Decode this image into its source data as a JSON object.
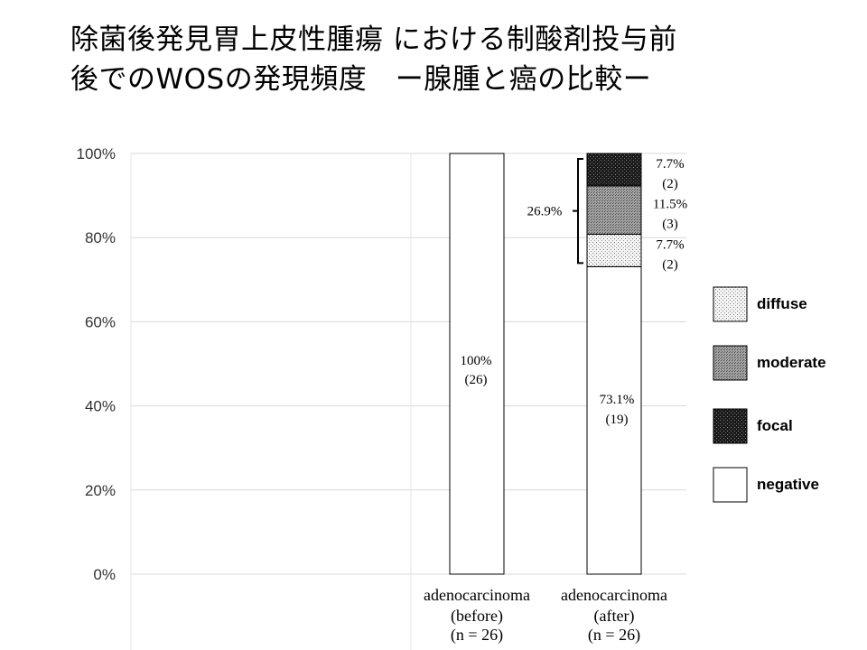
{
  "title": {
    "line1": "除菌後発見胃上皮性腫瘍 における制酸剤投与前",
    "line2": "後でのWOSの発現頻度　ー腺腫と癌の比較ー"
  },
  "chart_data": {
    "type": "bar",
    "stacked": true,
    "ylim": [
      0,
      100
    ],
    "y_ticks": [
      "0%",
      "20%",
      "40%",
      "60%",
      "80%",
      "100%"
    ],
    "grid": true,
    "categories": [
      {
        "name": "adenocarcinoma",
        "sub": "(before)",
        "n": "(n = 26)"
      },
      {
        "name": "adenocarcinoma",
        "sub": "(after)",
        "n": "(n = 26)"
      }
    ],
    "series": [
      {
        "name": "negative",
        "values": [
          100,
          73.1
        ],
        "labels": [
          [
            "100%",
            "(26)"
          ],
          [
            "73.1%",
            "(19)"
          ]
        ],
        "color": "#ffffff"
      },
      {
        "name": "diffuse",
        "values": [
          0,
          7.7
        ],
        "labels": [
          null,
          [
            "7.7%",
            "(2)"
          ]
        ],
        "color": "#e6e6e6"
      },
      {
        "name": "moderate",
        "values": [
          0,
          11.5
        ],
        "labels": [
          null,
          [
            "11.5%",
            "(3)"
          ]
        ],
        "color": "#8c8c8c"
      },
      {
        "name": "focal",
        "values": [
          0,
          7.7
        ],
        "labels": [
          null,
          [
            "7.7%",
            "(2)"
          ]
        ],
        "color": "#262626"
      }
    ],
    "bracket_label": "26.9%",
    "legend": {
      "placement": "right",
      "items": [
        "diffuse",
        "moderate",
        "focal",
        "negative"
      ]
    }
  }
}
